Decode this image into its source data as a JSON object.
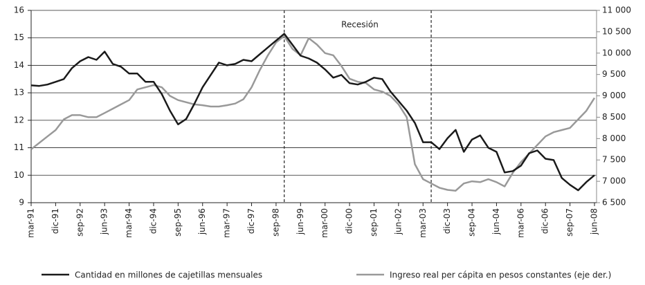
{
  "chart_data": {
    "type": "line",
    "categories": [
      "mar-91",
      null,
      null,
      "dic-91",
      null,
      null,
      "sep-92",
      null,
      null,
      "jun-93",
      null,
      null,
      "mar-94",
      null,
      null,
      "dic-94",
      null,
      null,
      "sep-95",
      null,
      null,
      "jun-96",
      null,
      null,
      "mar-97",
      null,
      null,
      "dic-97",
      null,
      null,
      "sep-98",
      null,
      null,
      "jun-99",
      null,
      null,
      "mar-00",
      null,
      null,
      "dic-00",
      null,
      null,
      "sep-01",
      null,
      null,
      "jun-02",
      null,
      null,
      "mar-03",
      null,
      null,
      "dic-03",
      null,
      null,
      "sep-04",
      null,
      null,
      "jun-04",
      null,
      null,
      "mar-06",
      null,
      null,
      "dic-06",
      null,
      null,
      "sep-07",
      null,
      null,
      "jun-08"
    ],
    "series": [
      {
        "name": "Cantidad en millones de cajetillas mensuales",
        "color": "#1a1a1a",
        "axis": "y",
        "values": [
          13.27,
          13.25,
          13.3,
          13.4,
          13.5,
          13.9,
          14.15,
          14.3,
          14.2,
          14.5,
          14.05,
          13.95,
          13.7,
          13.7,
          13.4,
          13.4,
          12.95,
          12.35,
          11.85,
          12.05,
          12.6,
          13.2,
          13.65,
          14.1,
          14.0,
          14.05,
          14.2,
          14.15,
          14.4,
          14.65,
          14.9,
          15.15,
          14.75,
          14.35,
          14.25,
          14.1,
          13.85,
          13.55,
          13.65,
          13.35,
          13.3,
          13.4,
          13.55,
          13.5,
          13.05,
          12.7,
          12.35,
          11.9,
          11.2,
          11.2,
          10.95,
          11.35,
          11.65,
          10.85,
          11.3,
          11.45,
          11.0,
          10.85,
          10.1,
          10.15,
          10.35,
          10.8,
          10.9,
          10.6,
          10.55,
          9.9,
          9.65,
          9.45,
          9.75,
          10.0
        ]
      },
      {
        "name": "Ingreso real per cápita en pesos constantes (eje der.)",
        "color": "#999999",
        "axis": "y2",
        "values": [
          7750,
          7900,
          8050,
          8200,
          8450,
          8550,
          8550,
          8500,
          8500,
          8600,
          8700,
          8800,
          8900,
          9150,
          9200,
          9250,
          9200,
          9000,
          8900,
          8850,
          8800,
          8780,
          8750,
          8750,
          8780,
          8820,
          8920,
          9200,
          9600,
          9950,
          10250,
          10400,
          10100,
          9950,
          10350,
          10200,
          10000,
          9950,
          9700,
          9400,
          9330,
          9300,
          9150,
          9100,
          9000,
          8800,
          8500,
          7400,
          7050,
          6950,
          6850,
          6800,
          6780,
          6950,
          7000,
          6980,
          7050,
          6980,
          6880,
          7200,
          7450,
          7650,
          7850,
          8050,
          8150,
          8200,
          8250,
          8450,
          8650,
          8950
        ]
      }
    ],
    "ylim": [
      9,
      16
    ],
    "yticks": [
      9,
      10,
      11,
      12,
      13,
      14,
      15,
      16
    ],
    "y2lim": [
      6500,
      11000
    ],
    "y2ticks": [
      {
        "value": 6500,
        "label": "6 500"
      },
      {
        "value": 7000,
        "label": "7 000"
      },
      {
        "value": 7500,
        "label": "7 500"
      },
      {
        "value": 8000,
        "label": "8 000"
      },
      {
        "value": 8500,
        "label": "8 500"
      },
      {
        "value": 9000,
        "label": "9 000"
      },
      {
        "value": 9500,
        "label": "9 500"
      },
      {
        "value": 10000,
        "label": "10 000"
      },
      {
        "value": 10500,
        "label": "10 500"
      },
      {
        "value": 11000,
        "label": "11 000"
      }
    ],
    "annotation": "Recesión",
    "grid": true
  }
}
